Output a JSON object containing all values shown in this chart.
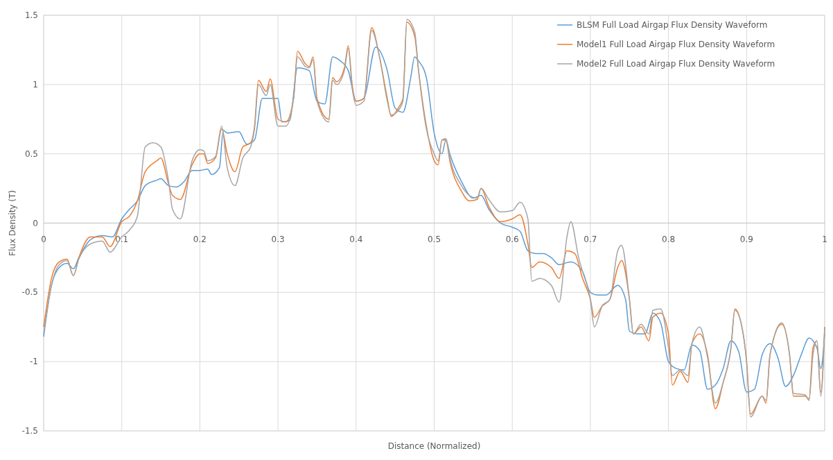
{
  "chart_data": {
    "type": "line",
    "xlabel": "Distance (Normalized)",
    "ylabel": "Flux Density (T)",
    "xlim": [
      0,
      1
    ],
    "xticks": [
      0,
      0.1,
      0.2,
      0.3,
      0.4,
      0.5,
      0.6,
      0.7,
      0.8,
      0.9,
      1
    ],
    "ylim": [
      -1.5,
      1.5
    ],
    "yticks": [
      -1.5,
      -1,
      -0.5,
      0,
      0.5,
      1,
      1.5
    ],
    "grid": true,
    "legend": "top right",
    "marker": "none",
    "line_style": "solid",
    "series": [
      {
        "name": "BLSM Full Load Airgap Flux Density Waveform",
        "color": "#5b9bd5",
        "x": [
          0,
          0.01,
          0.02,
          0.03,
          0.038,
          0.045,
          0.06,
          0.075,
          0.088,
          0.1,
          0.11,
          0.12,
          0.13,
          0.145,
          0.15,
          0.16,
          0.17,
          0.18,
          0.19,
          0.2,
          0.21,
          0.215,
          0.225,
          0.23,
          0.235,
          0.25,
          0.26,
          0.27,
          0.28,
          0.3,
          0.305,
          0.315,
          0.325,
          0.34,
          0.35,
          0.36,
          0.37,
          0.38,
          0.39,
          0.4,
          0.41,
          0.425,
          0.44,
          0.45,
          0.46,
          0.47,
          0.475,
          0.48,
          0.49,
          0.5,
          0.51,
          0.515,
          0.52,
          0.535,
          0.55,
          0.56,
          0.57,
          0.585,
          0.6,
          0.61,
          0.62,
          0.63,
          0.64,
          0.65,
          0.66,
          0.675,
          0.69,
          0.7,
          0.71,
          0.72,
          0.735,
          0.745,
          0.75,
          0.76,
          0.77,
          0.78,
          0.79,
          0.8,
          0.81,
          0.82,
          0.83,
          0.84,
          0.85,
          0.86,
          0.87,
          0.88,
          0.89,
          0.9,
          0.91,
          0.92,
          0.93,
          0.94,
          0.95,
          0.96,
          0.97,
          0.98,
          0.99,
          0.995,
          1
        ],
        "values": [
          -0.82,
          -0.45,
          -0.32,
          -0.29,
          -0.33,
          -0.25,
          -0.12,
          -0.09,
          -0.1,
          0.03,
          0.1,
          0.16,
          0.27,
          0.31,
          0.32,
          0.27,
          0.26,
          0.3,
          0.38,
          0.38,
          0.39,
          0.35,
          0.4,
          0.67,
          0.65,
          0.66,
          0.57,
          0.6,
          0.9,
          0.9,
          0.73,
          0.74,
          1.12,
          1.1,
          0.88,
          0.86,
          1.2,
          1.17,
          1.1,
          0.88,
          0.9,
          1.27,
          1.1,
          0.83,
          0.8,
          1.05,
          1.2,
          1.17,
          1.05,
          0.65,
          0.5,
          0.6,
          0.5,
          0.3,
          0.18,
          0.2,
          0.1,
          0,
          -0.03,
          -0.06,
          -0.2,
          -0.22,
          -0.22,
          -0.25,
          -0.3,
          -0.28,
          -0.35,
          -0.5,
          -0.52,
          -0.52,
          -0.45,
          -0.55,
          -0.78,
          -0.8,
          -0.8,
          -0.65,
          -0.72,
          -1,
          -1.05,
          -1.06,
          -0.88,
          -0.92,
          -1.2,
          -1.17,
          -1.05,
          -0.85,
          -0.93,
          -1.22,
          -1.2,
          -0.95,
          -0.87,
          -0.97,
          -1.18,
          -1.1,
          -0.95,
          -0.83,
          -0.9,
          -1.05,
          -0.8
        ]
      },
      {
        "name": "Model1 Full Load Airgap Flux Density Waveform",
        "color": "#ed7d31",
        "x": [
          0,
          0.01,
          0.02,
          0.03,
          0.038,
          0.045,
          0.06,
          0.075,
          0.085,
          0.1,
          0.11,
          0.12,
          0.13,
          0.145,
          0.15,
          0.16,
          0.165,
          0.175,
          0.19,
          0.2,
          0.205,
          0.21,
          0.22,
          0.228,
          0.235,
          0.245,
          0.255,
          0.265,
          0.27,
          0.275,
          0.285,
          0.29,
          0.3,
          0.31,
          0.32,
          0.325,
          0.335,
          0.34,
          0.345,
          0.35,
          0.365,
          0.37,
          0.375,
          0.385,
          0.39,
          0.395,
          0.4,
          0.41,
          0.42,
          0.43,
          0.44,
          0.445,
          0.455,
          0.46,
          0.465,
          0.475,
          0.48,
          0.49,
          0.5,
          0.505,
          0.51,
          0.515,
          0.52,
          0.535,
          0.545,
          0.555,
          0.56,
          0.57,
          0.585,
          0.6,
          0.61,
          0.62,
          0.625,
          0.635,
          0.65,
          0.66,
          0.67,
          0.68,
          0.69,
          0.7,
          0.705,
          0.715,
          0.725,
          0.735,
          0.74,
          0.75,
          0.755,
          0.765,
          0.775,
          0.78,
          0.79,
          0.8,
          0.805,
          0.815,
          0.825,
          0.83,
          0.84,
          0.85,
          0.86,
          0.87,
          0.88,
          0.885,
          0.895,
          0.9,
          0.905,
          0.92,
          0.925,
          0.93,
          0.945,
          0.955,
          0.96,
          0.975,
          0.98,
          0.985,
          0.99,
          0.995,
          1
        ],
        "values": [
          -0.75,
          -0.4,
          -0.28,
          -0.26,
          -0.38,
          -0.25,
          -0.1,
          -0.1,
          -0.17,
          0.01,
          0.05,
          0.16,
          0.37,
          0.45,
          0.47,
          0.28,
          0.2,
          0.17,
          0.42,
          0.5,
          0.5,
          0.43,
          0.47,
          0.68,
          0.5,
          0.37,
          0.55,
          0.58,
          0.7,
          1.03,
          0.95,
          1.04,
          0.75,
          0.73,
          0.9,
          1.24,
          1.15,
          1.13,
          1.2,
          0.9,
          0.75,
          1.05,
          1.02,
          1.12,
          1.28,
          1,
          0.88,
          0.9,
          1.41,
          1.2,
          0.9,
          0.77,
          0.84,
          0.9,
          1.45,
          1.35,
          1.1,
          0.7,
          0.45,
          0.42,
          0.6,
          0.6,
          0.45,
          0.23,
          0.16,
          0.17,
          0.25,
          0.12,
          0.01,
          0.03,
          0.06,
          -0.15,
          -0.32,
          -0.28,
          -0.32,
          -0.4,
          -0.2,
          -0.22,
          -0.4,
          -0.55,
          -0.68,
          -0.6,
          -0.55,
          -0.32,
          -0.27,
          -0.55,
          -0.8,
          -0.75,
          -0.85,
          -0.68,
          -0.65,
          -0.8,
          -1.17,
          -1.07,
          -1.15,
          -0.87,
          -0.8,
          -0.95,
          -1.34,
          -1.15,
          -0.9,
          -0.62,
          -0.78,
          -1,
          -1.38,
          -1.25,
          -1.3,
          -0.95,
          -0.73,
          -0.95,
          -1.25,
          -1.25,
          -1.27,
          -0.9,
          -0.85,
          -1.22,
          -0.75
        ]
      },
      {
        "name": "Model2 Full Load Airgap Flux Density Waveform",
        "color": "#a5a5a5",
        "x": [
          0,
          0.01,
          0.02,
          0.03,
          0.038,
          0.045,
          0.06,
          0.075,
          0.085,
          0.1,
          0.11,
          0.12,
          0.13,
          0.14,
          0.15,
          0.16,
          0.165,
          0.175,
          0.19,
          0.2,
          0.205,
          0.21,
          0.22,
          0.228,
          0.235,
          0.245,
          0.255,
          0.265,
          0.27,
          0.275,
          0.285,
          0.29,
          0.3,
          0.31,
          0.32,
          0.325,
          0.335,
          0.34,
          0.345,
          0.35,
          0.365,
          0.37,
          0.375,
          0.385,
          0.39,
          0.395,
          0.4,
          0.41,
          0.42,
          0.43,
          0.44,
          0.445,
          0.455,
          0.46,
          0.465,
          0.475,
          0.48,
          0.49,
          0.5,
          0.505,
          0.51,
          0.515,
          0.52,
          0.535,
          0.545,
          0.555,
          0.56,
          0.57,
          0.585,
          0.6,
          0.61,
          0.62,
          0.625,
          0.635,
          0.65,
          0.66,
          0.67,
          0.675,
          0.685,
          0.69,
          0.7,
          0.705,
          0.715,
          0.725,
          0.735,
          0.74,
          0.75,
          0.755,
          0.765,
          0.775,
          0.78,
          0.79,
          0.8,
          0.805,
          0.815,
          0.825,
          0.83,
          0.84,
          0.85,
          0.86,
          0.87,
          0.88,
          0.885,
          0.895,
          0.9,
          0.905,
          0.92,
          0.925,
          0.93,
          0.945,
          0.955,
          0.96,
          0.975,
          0.98,
          0.985,
          0.99,
          0.995,
          1
        ],
        "values": [
          -0.8,
          -0.45,
          -0.3,
          -0.27,
          -0.38,
          -0.26,
          -0.15,
          -0.13,
          -0.21,
          -0.1,
          -0.05,
          0.05,
          0.55,
          0.58,
          0.55,
          0.3,
          0.1,
          0.03,
          0.45,
          0.53,
          0.52,
          0.45,
          0.48,
          0.7,
          0.4,
          0.27,
          0.47,
          0.55,
          0.68,
          1,
          0.92,
          1,
          0.7,
          0.7,
          0.9,
          1.2,
          1.13,
          1.12,
          1.18,
          0.88,
          0.73,
          1.03,
          1,
          1.1,
          1.26,
          0.98,
          0.85,
          0.88,
          1.39,
          1.2,
          0.88,
          0.78,
          0.82,
          0.88,
          1.47,
          1.38,
          1.1,
          0.68,
          0.5,
          0.45,
          0.6,
          0.61,
          0.47,
          0.27,
          0.2,
          0.18,
          0.25,
          0.17,
          0.08,
          0.09,
          0.15,
          0.03,
          -0.42,
          -0.4,
          -0.45,
          -0.57,
          -0.1,
          0.01,
          -0.25,
          -0.35,
          -0.55,
          -0.75,
          -0.6,
          -0.55,
          -0.2,
          -0.16,
          -0.55,
          -0.8,
          -0.73,
          -0.8,
          -0.63,
          -0.62,
          -0.9,
          -1.1,
          -1.06,
          -1.1,
          -0.87,
          -0.75,
          -0.97,
          -1.3,
          -1.15,
          -0.9,
          -0.63,
          -0.78,
          -1,
          -1.4,
          -1.25,
          -1.28,
          -0.95,
          -0.72,
          -0.95,
          -1.23,
          -1.24,
          -1.28,
          -0.95,
          -0.85,
          -1.25,
          -0.75
        ]
      }
    ]
  }
}
